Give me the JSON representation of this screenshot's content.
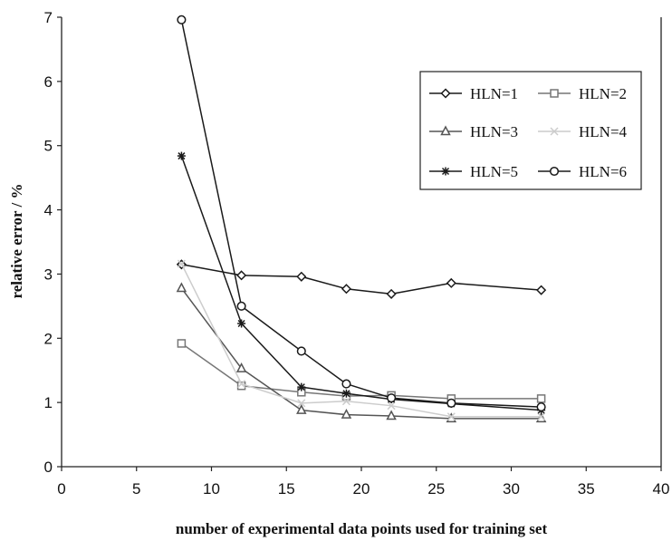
{
  "chart_data": {
    "type": "line",
    "title": "",
    "xlabel": "number of experimental data points used for training set",
    "ylabel": "relative error / %",
    "xlim": [
      0,
      40
    ],
    "ylim": [
      0,
      7
    ],
    "xticks": [
      0,
      5,
      10,
      15,
      20,
      25,
      30,
      35,
      40
    ],
    "yticks": [
      0,
      1,
      2,
      3,
      4,
      5,
      6,
      7
    ],
    "grid": false,
    "legend_position": "top-right",
    "x": [
      8,
      12,
      16,
      19,
      22,
      26,
      32
    ],
    "series": [
      {
        "name": "HLN=1",
        "marker": "diamond",
        "color": "#1a1a1a",
        "values": [
          3.15,
          2.98,
          2.96,
          2.77,
          2.69,
          2.86,
          2.75
        ]
      },
      {
        "name": "HLN=2",
        "marker": "square",
        "color": "#777777",
        "values": [
          1.92,
          1.26,
          1.16,
          1.1,
          1.11,
          1.06,
          1.06
        ]
      },
      {
        "name": "HLN=3",
        "marker": "triangle",
        "color": "#555555",
        "values": [
          2.78,
          1.53,
          0.88,
          0.81,
          0.79,
          0.75,
          0.75
        ]
      },
      {
        "name": "HLN=4",
        "marker": "x",
        "color": "#cccccc",
        "values": [
          3.16,
          1.29,
          0.99,
          1.02,
          0.95,
          0.78,
          0.78
        ]
      },
      {
        "name": "HLN=5",
        "marker": "star",
        "color": "#1a1a1a",
        "values": [
          4.84,
          2.23,
          1.24,
          1.14,
          1.05,
          0.98,
          0.88
        ]
      },
      {
        "name": "HLN=6",
        "marker": "circle",
        "color": "#1a1a1a",
        "values": [
          6.96,
          2.5,
          1.8,
          1.29,
          1.07,
          0.99,
          0.93
        ]
      }
    ]
  }
}
